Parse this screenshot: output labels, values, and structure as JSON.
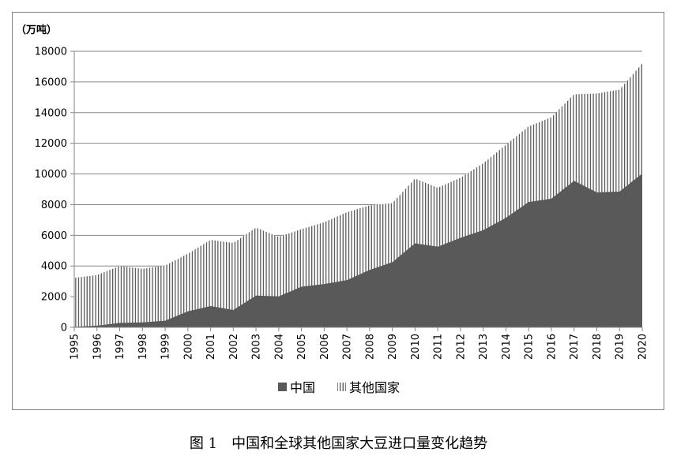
{
  "caption": "图 1　中国和全球其他国家大豆进口量变化趋势",
  "chart_data": {
    "type": "area",
    "stacked": true,
    "unit_label": "（万吨）",
    "x": [
      "1995",
      "1996",
      "1997",
      "1998",
      "1999",
      "2000",
      "2001",
      "2002",
      "2003",
      "2004",
      "2005",
      "2006",
      "2007",
      "2008",
      "2009",
      "2010",
      "2011",
      "2012",
      "2013",
      "2014",
      "2015",
      "2016",
      "2017",
      "2018",
      "2019",
      "2020"
    ],
    "ylim": [
      0,
      18000
    ],
    "yticks": [
      0,
      2000,
      4000,
      6000,
      8000,
      10000,
      12000,
      14000,
      16000,
      18000
    ],
    "grid": true,
    "legend_position": "bottom",
    "series": [
      {
        "name": "中国",
        "color": "#595959",
        "pattern": "solid",
        "values": [
          30,
          110,
          290,
          320,
          430,
          1040,
          1390,
          1130,
          2070,
          2020,
          2650,
          2820,
          3080,
          3740,
          4250,
          5480,
          5260,
          5840,
          6340,
          7140,
          8170,
          8390,
          9550,
          8800,
          8850,
          10030
        ]
      },
      {
        "name": "其他国家",
        "color": "#595959",
        "pattern": "vertical-lines",
        "values": [
          3200,
          3300,
          3700,
          3500,
          3600,
          3760,
          4310,
          4370,
          4430,
          3880,
          3750,
          4030,
          4420,
          4210,
          3850,
          4220,
          3840,
          3910,
          4360,
          4760,
          4930,
          5310,
          5650,
          6450,
          6650,
          7170
        ]
      }
    ]
  }
}
